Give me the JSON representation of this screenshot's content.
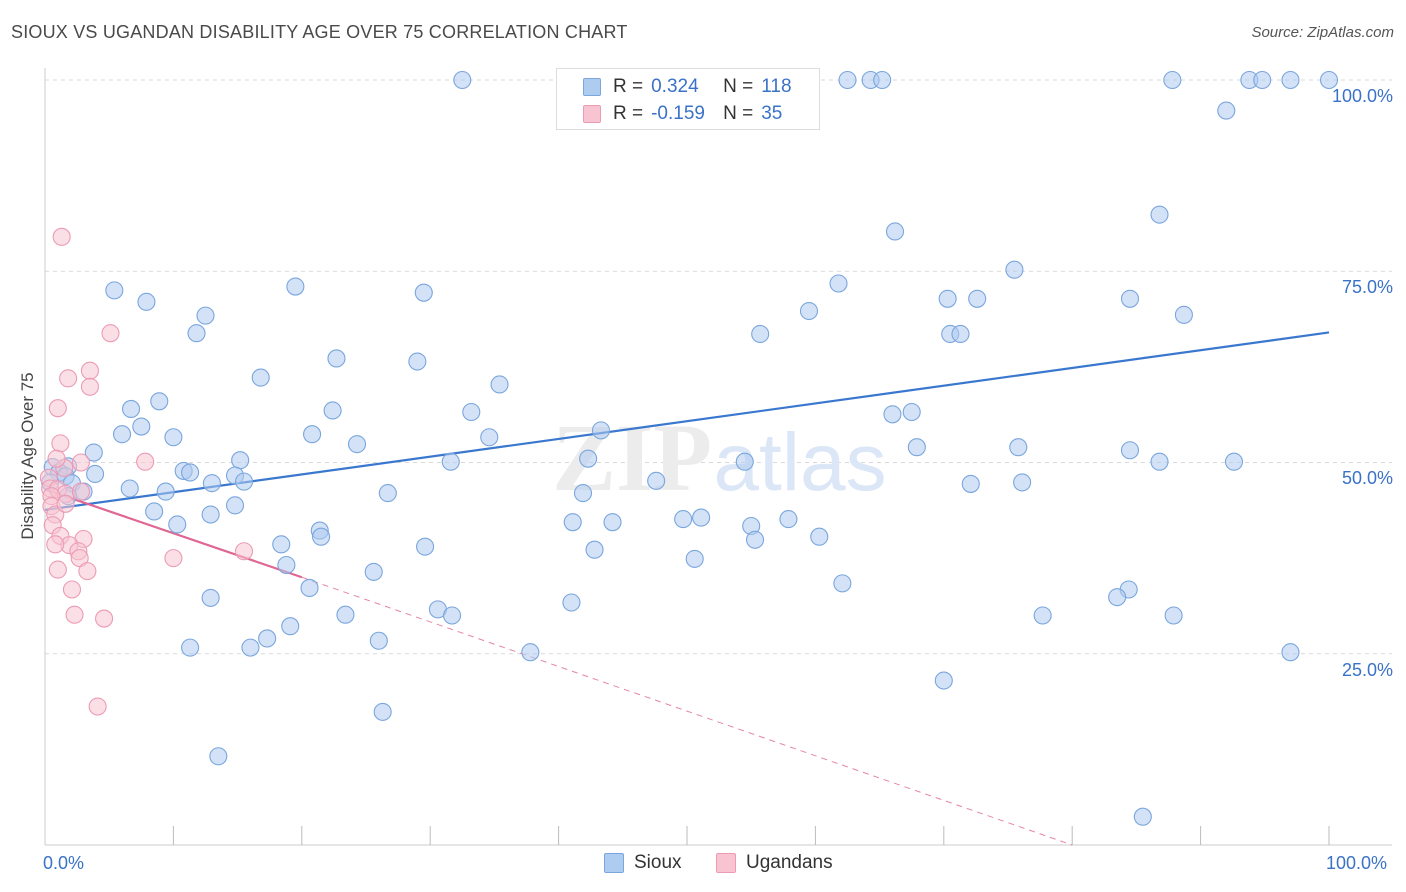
{
  "title": "SIOUX VS UGANDAN DISABILITY AGE OVER 75 CORRELATION CHART",
  "source": "Source: ZipAtlas.com",
  "watermark": {
    "zip": "ZIP",
    "atlas": "atlas"
  },
  "legend": {
    "rows": [
      {
        "r_label": "R =",
        "r_value": "0.324",
        "n_label": "N =",
        "n_value": "118"
      },
      {
        "r_label": "R =",
        "r_value": "-0.159",
        "n_label": "N =",
        "n_value": "35"
      }
    ]
  },
  "bottom_legend": [
    "Sioux",
    "Ugandans"
  ],
  "axis": {
    "x_left": "0.0%",
    "x_right": "100.0%",
    "ylabel": "Disability Age Over 75",
    "y_ticks": [
      "100.0%",
      "75.0%",
      "50.0%",
      "25.0%"
    ]
  },
  "colors": {
    "blue_fill": "#aecbf0",
    "blue_stroke": "#7aa6dd",
    "blue_line": "#3a78d0",
    "pink_fill": "#f8c4d2",
    "pink_stroke": "#ec9bb4",
    "pink_line": "#e06694",
    "grid": "#d9d9d9",
    "tick_text": "#3a72c8"
  },
  "chart_data": {
    "type": "scatter",
    "title": "SIOUX VS UGANDAN DISABILITY AGE OVER 75 CORRELATION CHART",
    "xlabel": "",
    "ylabel": "Disability Age Over 75",
    "xlim": [
      0,
      100
    ],
    "ylim": [
      0,
      102
    ],
    "y_ticks": [
      25,
      50,
      75,
      100
    ],
    "grid": true,
    "series": [
      {
        "name": "Sioux",
        "R": 0.324,
        "N": 118,
        "trend": {
          "x": [
            0,
            100
          ],
          "y": [
            43.8,
            67.0
          ]
        },
        "points": [
          [
            32.5,
            100
          ],
          [
            62.5,
            100
          ],
          [
            64.3,
            100
          ],
          [
            65.2,
            100
          ],
          [
            87.8,
            100
          ],
          [
            93.8,
            100
          ],
          [
            94.8,
            100
          ],
          [
            97.0,
            100
          ],
          [
            100,
            100
          ],
          [
            92.0,
            96.0
          ],
          [
            86.8,
            82.4
          ],
          [
            66.2,
            80.2
          ],
          [
            75.5,
            75.2
          ],
          [
            61.8,
            73.4
          ],
          [
            19.5,
            73.0
          ],
          [
            29.5,
            72.2
          ],
          [
            5.4,
            72.5
          ],
          [
            7.9,
            71.0
          ],
          [
            70.3,
            71.4
          ],
          [
            72.6,
            71.4
          ],
          [
            84.5,
            71.4
          ],
          [
            59.5,
            69.8
          ],
          [
            88.7,
            69.3
          ],
          [
            12.5,
            69.2
          ],
          [
            11.8,
            66.9
          ],
          [
            55.7,
            66.8
          ],
          [
            70.5,
            66.8
          ],
          [
            71.3,
            66.8
          ],
          [
            22.7,
            63.6
          ],
          [
            29.0,
            63.2
          ],
          [
            16.8,
            61.1
          ],
          [
            35.4,
            60.2
          ],
          [
            8.9,
            58.0
          ],
          [
            6.7,
            57.0
          ],
          [
            22.4,
            56.8
          ],
          [
            33.2,
            56.6
          ],
          [
            67.5,
            56.6
          ],
          [
            66.0,
            56.3
          ],
          [
            7.5,
            54.7
          ],
          [
            43.3,
            54.2
          ],
          [
            6.0,
            53.7
          ],
          [
            20.8,
            53.7
          ],
          [
            34.6,
            53.3
          ],
          [
            10.0,
            53.3
          ],
          [
            24.3,
            52.4
          ],
          [
            67.9,
            52.0
          ],
          [
            75.8,
            52.0
          ],
          [
            84.5,
            51.6
          ],
          [
            3.8,
            51.3
          ],
          [
            42.3,
            50.5
          ],
          [
            31.6,
            50.1
          ],
          [
            86.8,
            50.1
          ],
          [
            92.6,
            50.1
          ],
          [
            54.5,
            50.1
          ],
          [
            15.2,
            50.3
          ],
          [
            1.8,
            49.5
          ],
          [
            0.6,
            49.4
          ],
          [
            1.1,
            48.7
          ],
          [
            3.9,
            48.5
          ],
          [
            10.8,
            48.9
          ],
          [
            11.3,
            48.7
          ],
          [
            1.6,
            48.2
          ],
          [
            14.8,
            48.3
          ],
          [
            0.4,
            47.4
          ],
          [
            2.1,
            47.3
          ],
          [
            13.0,
            47.3
          ],
          [
            15.5,
            47.5
          ],
          [
            76.1,
            47.4
          ],
          [
            47.6,
            47.6
          ],
          [
            6.6,
            46.6
          ],
          [
            3.0,
            46.2
          ],
          [
            9.4,
            46.2
          ],
          [
            26.7,
            46.0
          ],
          [
            1.8,
            45.6
          ],
          [
            41.9,
            46.0
          ],
          [
            14.8,
            44.4
          ],
          [
            8.5,
            43.6
          ],
          [
            12.9,
            43.2
          ],
          [
            51.1,
            42.8
          ],
          [
            49.7,
            42.6
          ],
          [
            57.9,
            42.6
          ],
          [
            44.2,
            42.2
          ],
          [
            41.1,
            42.2
          ],
          [
            10.3,
            41.9
          ],
          [
            55.0,
            41.7
          ],
          [
            21.4,
            41.1
          ],
          [
            21.5,
            40.3
          ],
          [
            60.3,
            40.3
          ],
          [
            18.4,
            39.3
          ],
          [
            55.3,
            39.9
          ],
          [
            29.6,
            39.0
          ],
          [
            42.8,
            38.6
          ],
          [
            50.6,
            37.4
          ],
          [
            18.8,
            36.6
          ],
          [
            25.6,
            35.7
          ],
          [
            62.1,
            34.2
          ],
          [
            20.6,
            33.6
          ],
          [
            84.4,
            33.4
          ],
          [
            83.5,
            32.4
          ],
          [
            12.9,
            32.3
          ],
          [
            41.0,
            31.7
          ],
          [
            30.6,
            30.8
          ],
          [
            31.7,
            30.0
          ],
          [
            23.4,
            30.1
          ],
          [
            77.7,
            30.0
          ],
          [
            87.9,
            30.0
          ],
          [
            19.1,
            28.6
          ],
          [
            17.3,
            27.0
          ],
          [
            26.0,
            26.7
          ],
          [
            16.0,
            25.8
          ],
          [
            11.3,
            25.8
          ],
          [
            37.8,
            25.2
          ],
          [
            97.0,
            25.2
          ],
          [
            70.0,
            21.5
          ],
          [
            26.3,
            17.4
          ],
          [
            13.5,
            11.6
          ],
          [
            85.5,
            3.7
          ],
          [
            72.1,
            47.2
          ]
        ]
      },
      {
        "name": "Ugandans",
        "R": -0.159,
        "N": 35,
        "trend": {
          "x": [
            0,
            20
          ],
          "y": [
            46.5,
            35.0
          ]
        },
        "trend_dashed": {
          "x": [
            20,
            80
          ],
          "y": [
            35.0,
            0
          ]
        },
        "points": [
          [
            1.3,
            79.5
          ],
          [
            5.1,
            66.9
          ],
          [
            3.5,
            62.0
          ],
          [
            1.8,
            61.0
          ],
          [
            3.5,
            59.9
          ],
          [
            1.0,
            57.1
          ],
          [
            1.2,
            52.5
          ],
          [
            7.8,
            50.1
          ],
          [
            2.8,
            50.0
          ],
          [
            1.5,
            49.3
          ],
          [
            0.3,
            48.0
          ],
          [
            0.4,
            46.6
          ],
          [
            1.0,
            46.5
          ],
          [
            1.6,
            45.9
          ],
          [
            0.5,
            45.6
          ],
          [
            2.8,
            46.2
          ],
          [
            0.5,
            44.3
          ],
          [
            0.8,
            43.2
          ],
          [
            0.6,
            41.8
          ],
          [
            1.2,
            40.4
          ],
          [
            3.0,
            40.0
          ],
          [
            1.9,
            39.2
          ],
          [
            0.8,
            39.3
          ],
          [
            15.5,
            38.4
          ],
          [
            2.6,
            38.4
          ],
          [
            2.7,
            37.5
          ],
          [
            10.0,
            37.5
          ],
          [
            1.0,
            36.0
          ],
          [
            3.3,
            35.8
          ],
          [
            2.1,
            33.4
          ],
          [
            2.3,
            30.1
          ],
          [
            4.6,
            29.6
          ],
          [
            4.1,
            18.1
          ],
          [
            0.9,
            50.5
          ],
          [
            1.6,
            44.6
          ]
        ]
      }
    ]
  }
}
